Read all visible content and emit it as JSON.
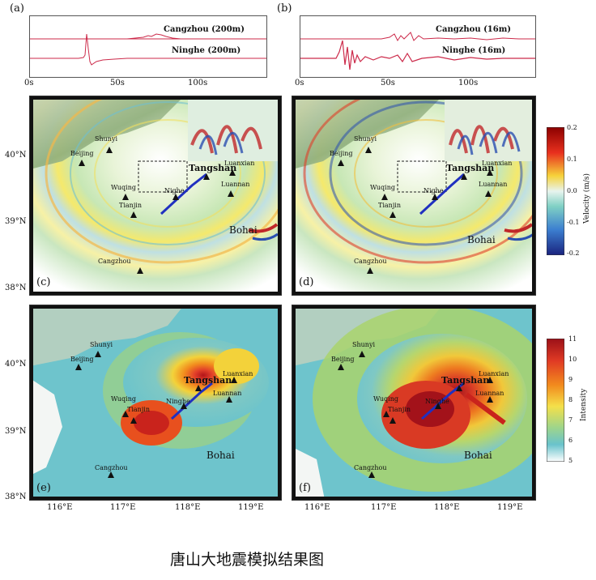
{
  "panels": {
    "a": "(a)",
    "b": "(b)",
    "c": "(c)",
    "d": "(d)",
    "e": "(e)",
    "f": "(f)"
  },
  "waveforms": {
    "a": {
      "top_label": "Cangzhou (200m)",
      "bottom_label": "Ninghe (200m)"
    },
    "b": {
      "top_label": "Cangzhou (16m)",
      "bottom_label": "Ninghe (16m)"
    },
    "time_ticks": [
      "0s",
      "50s",
      "100s"
    ]
  },
  "lat_ticks": [
    "40°N",
    "39°N",
    "38°N"
  ],
  "lon_ticks": [
    "116°E",
    "117°E",
    "118°E",
    "119°E"
  ],
  "cities": {
    "shunyi": "Shunyi",
    "beijing": "Beijing",
    "wuqing": "Wuqing",
    "tianjin": "Tianjin",
    "ninghe": "Nighe",
    "ninghe_map": "Ninghe",
    "tangshan": "Tangshan",
    "luanxian": "Luanxian",
    "luannan": "Luannan",
    "cangzhou": "Cangzhou",
    "bohai": "Bohai"
  },
  "velocity_bar": {
    "label": "Velocity (m/s)",
    "ticks": [
      "0.2",
      "0.1",
      "0.0",
      "-0.1",
      "-0.2"
    ]
  },
  "intensity_bar": {
    "label": "Intensity",
    "ticks": [
      "11",
      "10",
      "9",
      "8",
      "7",
      "6",
      "5"
    ]
  },
  "caption": "唐山大地震模拟结果图",
  "colors": {
    "trace": "#cc2a4a",
    "fault": "#2030c0"
  }
}
